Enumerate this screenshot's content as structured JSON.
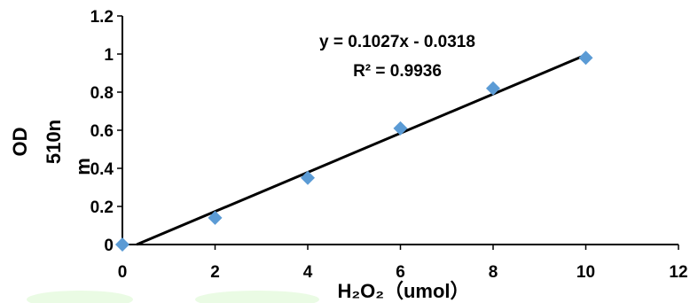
{
  "chart_data": {
    "type": "scatter",
    "title": "",
    "xlabel": "H₂O₂（umol）",
    "ylabel_line1": "OD",
    "ylabel_line2": "510n",
    "ylabel_line3": "m",
    "xlim": [
      0,
      12
    ],
    "ylim": [
      0,
      1.2
    ],
    "x_ticks": [
      0,
      2,
      4,
      6,
      8,
      10,
      12
    ],
    "y_ticks": [
      0,
      0.2,
      0.4,
      0.6,
      0.8,
      1,
      1.2
    ],
    "x_tick_labels": [
      "0",
      "2",
      "4",
      "6",
      "8",
      "10",
      "12"
    ],
    "y_tick_labels": [
      "0",
      "0.2",
      "0.4",
      "0.6",
      "0.8",
      "1",
      "1.2"
    ],
    "series": [
      {
        "x": [
          0,
          2,
          4,
          6,
          8,
          10
        ],
        "y": [
          0.0,
          0.14,
          0.35,
          0.61,
          0.82,
          0.98
        ],
        "color": "#5b9bd5",
        "marker": "diamond"
      }
    ],
    "trendline": {
      "slope": 0.1027,
      "intercept": -0.0318,
      "x_range": [
        0.31,
        10
      ],
      "color": "#000000"
    },
    "equation": "y = 0.1027x - 0.0318",
    "r_squared": "R² = 0.9936",
    "grid": false,
    "legend": false
  }
}
